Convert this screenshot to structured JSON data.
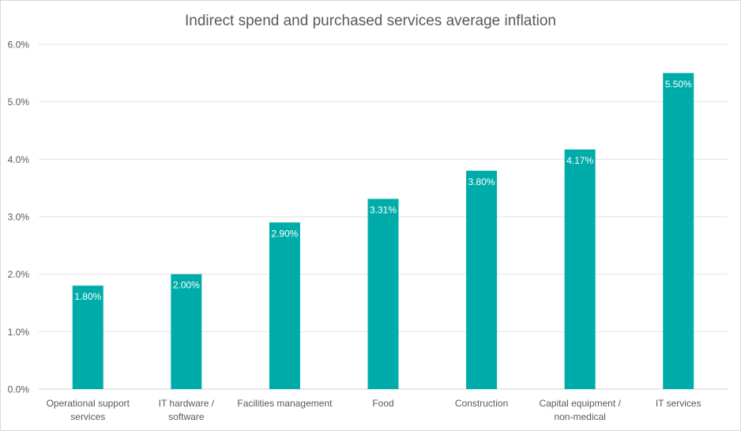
{
  "chart_data": {
    "type": "bar",
    "title": "Indirect spend and purchased services average inflation",
    "xlabel": "",
    "ylabel": "",
    "categories": [
      [
        "Operational support",
        "services"
      ],
      [
        "IT hardware /",
        "software"
      ],
      [
        "Facilities management"
      ],
      [
        "Food"
      ],
      [
        "Construction"
      ],
      [
        "Capital equipment /",
        "non-medical"
      ],
      [
        "IT services"
      ]
    ],
    "values": [
      1.8,
      2.0,
      2.9,
      3.31,
      3.8,
      4.17,
      5.5
    ],
    "data_labels": [
      "1.80%",
      "2.00%",
      "2.90%",
      "3.31%",
      "3.80%",
      "4.17%",
      "5.50%"
    ],
    "ylim": [
      0,
      6
    ],
    "yticks": [
      "0.0%",
      "1.0%",
      "2.0%",
      "3.0%",
      "4.0%",
      "5.0%",
      "6.0%"
    ],
    "grid": true,
    "legend": "none",
    "bar_color": "#00ACA9"
  }
}
